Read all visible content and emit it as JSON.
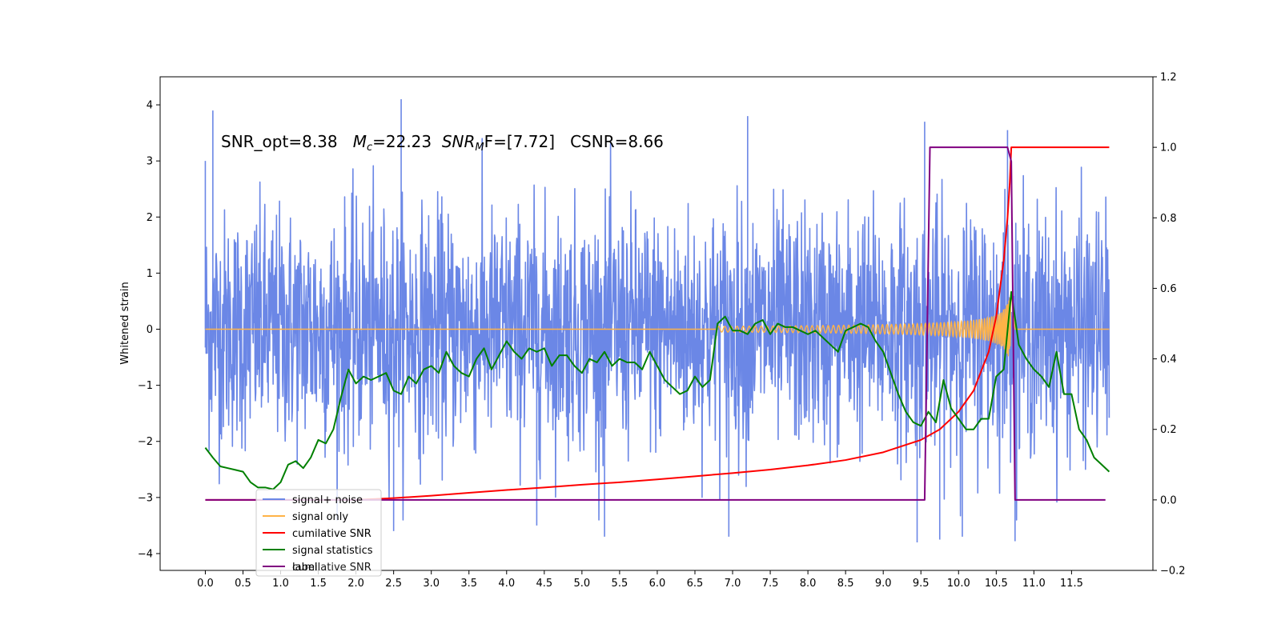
{
  "chart_data": {
    "type": "line",
    "title": "",
    "annotation": {
      "parts": [
        "SNR_opt=8.38   ",
        "M",
        "c",
        "=22.23  ",
        "SNR",
        "M",
        "F=[7.72]   CSNR=8.66"
      ]
    },
    "xlabel": "",
    "ylabel": "Whitened strain",
    "xlim": [
      -0.6,
      12.58
    ],
    "ylim": [
      -4.3,
      4.5
    ],
    "ylim_right": [
      -0.2,
      1.2
    ],
    "x_ticks": [
      "0.0",
      "0.5",
      "1.0",
      "1.5",
      "2.0",
      "2.5",
      "3.0",
      "3.5",
      "4.0",
      "4.5",
      "5.0",
      "5.5",
      "6.0",
      "6.5",
      "7.0",
      "7.5",
      "8.0",
      "8.5",
      "9.0",
      "9.5",
      "10.0",
      "10.5",
      "11.0",
      "11.5"
    ],
    "y_ticks_left": [
      "−4",
      "−3",
      "−2",
      "−1",
      "0",
      "1",
      "2",
      "3",
      "4"
    ],
    "y_ticks_right": [
      "−0.2",
      "0.0",
      "0.2",
      "0.4",
      "0.6",
      "0.8",
      "1.0",
      "1.2"
    ],
    "grid": false,
    "legend_placement": "lower-left",
    "legend": [
      "signal+ noise",
      "signal only",
      "cumilative SNR",
      "signal statistics",
      "label"
    ],
    "legend_ghost": "cumilative SNR",
    "colors": {
      "noise": "#6b87e6",
      "signal": "#ffb347",
      "csnr": "#ff0000",
      "stat": "#008000",
      "label": "#800080"
    },
    "series": [
      {
        "name": "signal+ noise",
        "axis": "left",
        "x_range": [
          0,
          12.0
        ],
        "noise_sigma": 1.0,
        "spike_points": [
          [
            0.0,
            3.0
          ],
          [
            0.1,
            3.9
          ],
          [
            2.6,
            4.1
          ],
          [
            7.2,
            3.8
          ],
          [
            9.55,
            3.7
          ],
          [
            10.65,
            3.55
          ],
          [
            10.05,
            -3.7
          ],
          [
            9.45,
            -3.8
          ],
          [
            6.95,
            -3.7
          ],
          [
            5.3,
            -3.7
          ],
          [
            2.5,
            -3.6
          ],
          [
            4.4,
            -3.5
          ],
          [
            9.75,
            -3.75
          ],
          [
            10.75,
            -3.78
          ]
        ]
      },
      {
        "name": "signal only",
        "axis": "left",
        "chirp_start": 6.8,
        "merger": 10.7,
        "peak_amplitude": 0.7
      },
      {
        "name": "cumilative SNR",
        "axis": "right",
        "x": [
          0.0,
          0.5,
          1.0,
          1.5,
          2.0,
          2.5,
          3.0,
          3.5,
          4.0,
          4.5,
          5.0,
          5.5,
          6.0,
          6.5,
          7.0,
          7.5,
          8.0,
          8.5,
          9.0,
          9.5,
          9.75,
          10.0,
          10.2,
          10.4,
          10.5,
          10.6,
          10.65,
          10.68,
          10.7,
          10.72,
          10.75,
          11.0,
          11.5,
          12.0
        ],
        "y": [
          0.0,
          0.0,
          0.0,
          0.0,
          0.0,
          0.005,
          0.012,
          0.02,
          0.028,
          0.035,
          0.043,
          0.05,
          0.058,
          0.067,
          0.076,
          0.086,
          0.098,
          0.113,
          0.135,
          0.17,
          0.2,
          0.25,
          0.31,
          0.42,
          0.52,
          0.68,
          0.8,
          0.9,
          1.0,
          1.0,
          1.0,
          1.0,
          1.0,
          1.0
        ]
      },
      {
        "name": "signal statistics",
        "axis": "right",
        "x": [
          0.0,
          0.1,
          0.2,
          0.3,
          0.4,
          0.5,
          0.6,
          0.7,
          0.8,
          0.9,
          1.0,
          1.1,
          1.2,
          1.3,
          1.4,
          1.5,
          1.6,
          1.7,
          1.8,
          1.9,
          2.0,
          2.1,
          2.2,
          2.3,
          2.4,
          2.5,
          2.6,
          2.7,
          2.8,
          2.9,
          3.0,
          3.1,
          3.2,
          3.3,
          3.4,
          3.5,
          3.6,
          3.7,
          3.8,
          3.9,
          4.0,
          4.1,
          4.2,
          4.3,
          4.4,
          4.5,
          4.6,
          4.7,
          4.8,
          4.9,
          5.0,
          5.1,
          5.2,
          5.3,
          5.4,
          5.5,
          5.6,
          5.7,
          5.8,
          5.9,
          6.0,
          6.1,
          6.2,
          6.3,
          6.4,
          6.5,
          6.6,
          6.7,
          6.8,
          6.9,
          7.0,
          7.1,
          7.2,
          7.3,
          7.4,
          7.5,
          7.6,
          7.7,
          7.8,
          7.9,
          8.0,
          8.1,
          8.2,
          8.3,
          8.4,
          8.5,
          8.6,
          8.7,
          8.8,
          8.9,
          9.0,
          9.1,
          9.2,
          9.3,
          9.4,
          9.5,
          9.6,
          9.7,
          9.8,
          9.9,
          10.0,
          10.1,
          10.2,
          10.3,
          10.4,
          10.5,
          10.6,
          10.7,
          10.8,
          10.9,
          11.0,
          11.1,
          11.2,
          11.3,
          11.4,
          11.5,
          11.6,
          11.7,
          11.8,
          11.9,
          12.0
        ],
        "y": [
          0.148,
          0.12,
          0.095,
          0.09,
          0.085,
          0.08,
          0.05,
          0.035,
          0.035,
          0.03,
          0.05,
          0.1,
          0.11,
          0.09,
          0.12,
          0.17,
          0.16,
          0.2,
          0.29,
          0.37,
          0.33,
          0.35,
          0.34,
          0.35,
          0.36,
          0.31,
          0.3,
          0.35,
          0.33,
          0.37,
          0.38,
          0.36,
          0.42,
          0.38,
          0.36,
          0.35,
          0.4,
          0.43,
          0.37,
          0.41,
          0.45,
          0.42,
          0.4,
          0.43,
          0.42,
          0.43,
          0.38,
          0.41,
          0.41,
          0.38,
          0.36,
          0.4,
          0.39,
          0.42,
          0.38,
          0.4,
          0.39,
          0.39,
          0.37,
          0.42,
          0.38,
          0.34,
          0.32,
          0.3,
          0.31,
          0.35,
          0.32,
          0.34,
          0.5,
          0.52,
          0.48,
          0.48,
          0.47,
          0.5,
          0.51,
          0.47,
          0.5,
          0.49,
          0.49,
          0.48,
          0.47,
          0.48,
          0.46,
          0.44,
          0.42,
          0.48,
          0.49,
          0.5,
          0.49,
          0.45,
          0.42,
          0.36,
          0.3,
          0.25,
          0.22,
          0.21,
          0.25,
          0.22,
          0.34,
          0.26,
          0.23,
          0.2,
          0.2,
          0.23,
          0.23,
          0.35,
          0.37,
          0.59,
          0.44,
          0.4,
          0.37,
          0.35,
          0.32,
          0.42,
          0.3,
          0.3,
          0.2,
          0.17,
          0.12,
          0.1,
          0.08
        ]
      },
      {
        "name": "label",
        "axis": "right",
        "x": [
          0.0,
          9.55,
          9.62,
          10.65,
          10.7,
          10.75,
          11.95
        ],
        "y": [
          0.0,
          0.0,
          1.0,
          1.0,
          0.96,
          0.0,
          0.0
        ]
      }
    ]
  }
}
